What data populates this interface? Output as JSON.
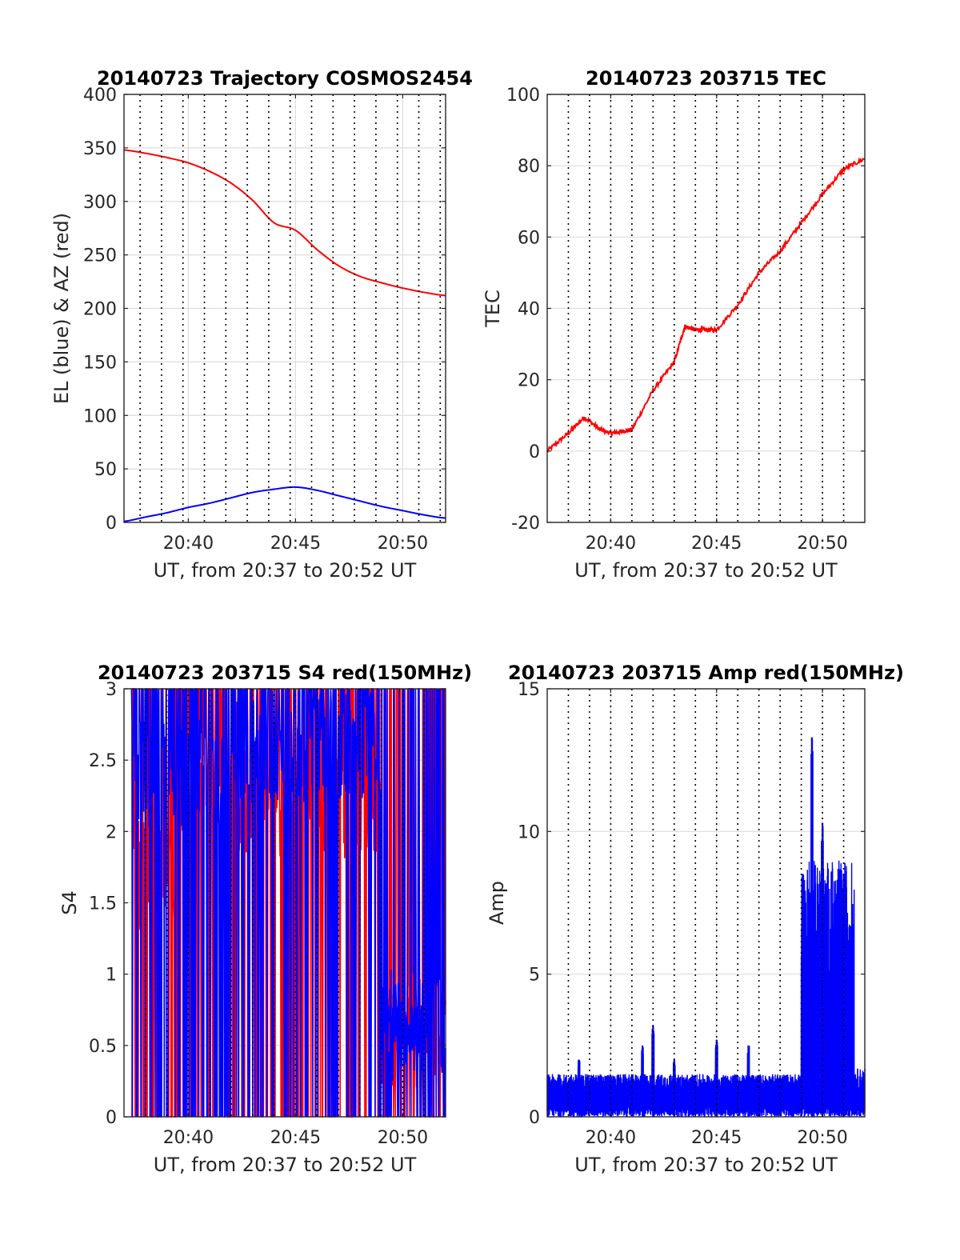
{
  "colors": {
    "red": "#ff0000",
    "blue": "#0000ff",
    "grid": "#dddddd",
    "axis": "#262626",
    "vline": "#000000"
  },
  "chart_data": [
    {
      "type": "line",
      "title": "20140723 Trajectory COSMOS2454",
      "xlabel": "UT, from 20:37 to 20:52 UT",
      "ylabel": "EL (blue) & AZ (red)",
      "xlim": [
        "20:37",
        "20:52"
      ],
      "ylim": [
        0,
        400
      ],
      "xticks": [
        "20:40",
        "20:45",
        "20:50"
      ],
      "yticks": [
        0,
        50,
        100,
        150,
        200,
        250,
        300,
        350,
        400
      ],
      "grid": true,
      "x": [
        "20:37",
        "20:38",
        "20:39",
        "20:40",
        "20:41",
        "20:42",
        "20:43",
        "20:44",
        "20:45",
        "20:46",
        "20:47",
        "20:48",
        "20:49",
        "20:50",
        "20:51",
        "20:52"
      ],
      "series": [
        {
          "color": "red",
          "values": [
            348,
            345,
            341,
            336,
            328,
            317,
            301,
            280,
            273,
            255,
            240,
            230,
            224,
            219,
            215,
            212
          ]
        },
        {
          "color": "blue",
          "values": [
            1,
            5,
            9,
            14,
            18,
            23,
            28,
            31,
            33,
            30,
            25,
            20,
            15,
            11,
            7,
            4
          ]
        }
      ],
      "vlines": [
        "20:37:45",
        "20:38:45",
        "20:39:45",
        "20:40:45",
        "20:41:45",
        "20:42:45",
        "20:43:45",
        "20:44:45",
        "20:45:45",
        "20:46:45",
        "20:47:45",
        "20:48:45",
        "20:49:45",
        "20:50:45",
        "20:51:45"
      ]
    },
    {
      "type": "line",
      "title": "20140723 203715 TEC",
      "xlabel": "UT, from 20:37 to 20:52 UT",
      "ylabel": "TEC",
      "xlim": [
        "20:37",
        "20:52"
      ],
      "ylim": [
        -20,
        100
      ],
      "xticks": [
        "20:40",
        "20:45",
        "20:50"
      ],
      "yticks": [
        -20,
        0,
        20,
        40,
        60,
        80,
        100
      ],
      "grid": true,
      "x": [
        "20:37",
        "20:38",
        "20:38:45",
        "20:39:30",
        "20:40",
        "20:40:30",
        "20:41",
        "20:42",
        "20:43",
        "20:43:30",
        "20:44",
        "20:44:30",
        "20:45",
        "20:46",
        "20:47",
        "20:48",
        "20:49",
        "20:50",
        "20:51",
        "20:52"
      ],
      "series": [
        {
          "color": "red",
          "values": [
            0,
            5,
            9.5,
            6,
            5,
            5.5,
            6,
            17,
            25,
            35,
            34,
            34,
            34,
            41,
            50,
            56,
            64,
            72,
            79,
            82
          ]
        }
      ],
      "vlines": [
        "20:38",
        "20:39",
        "20:40",
        "20:41",
        "20:42",
        "20:43",
        "20:44",
        "20:45",
        "20:46",
        "20:47",
        "20:48",
        "20:49",
        "20:50",
        "20:51"
      ]
    },
    {
      "type": "line",
      "title": "20140723 203715 S4 red(150MHz)",
      "xlabel": "UT, from 20:37 to 20:52 UT",
      "ylabel": "S4",
      "xlim": [
        "20:37",
        "20:52"
      ],
      "ylim": [
        0,
        3
      ],
      "xticks": [
        "20:40",
        "20:45",
        "20:50"
      ],
      "yticks": [
        0,
        0.5,
        1,
        1.5,
        2,
        2.5,
        3
      ],
      "grid": true,
      "series": [
        {
          "color": "red",
          "note_values_range": [
            0,
            3
          ],
          "values_envelope": "oscillates between 0 and 3 across the interval; baseline near 1.5–2 around 20:38–20:40 and near 0.6 after 20:49"
        },
        {
          "color": "blue",
          "values_envelope": "oscillates between 0 and 3; dense near 3 at 20:42–20:48; band near 0.6 around 20:49–20:50"
        }
      ],
      "vlines": [
        "20:38",
        "20:39",
        "20:40",
        "20:41",
        "20:42",
        "20:43",
        "20:44",
        "20:45",
        "20:46",
        "20:47",
        "20:48",
        "20:49",
        "20:50",
        "20:51"
      ]
    },
    {
      "type": "line",
      "title": "20140723 203715 Amp red(150MHz)",
      "xlabel": "UT, from 20:37 to 20:52 UT",
      "ylabel": "Amp",
      "xlim": [
        "20:37",
        "20:52"
      ],
      "ylim": [
        0,
        15
      ],
      "xticks": [
        "20:40",
        "20:45",
        "20:50"
      ],
      "yticks": [
        0,
        5,
        10,
        15
      ],
      "grid": true,
      "peaks": [
        {
          "t": "20:38:30",
          "v": 2.0
        },
        {
          "t": "20:41:30",
          "v": 2.5
        },
        {
          "t": "20:42",
          "v": 3.2
        },
        {
          "t": "20:43",
          "v": 2.0
        },
        {
          "t": "20:45",
          "v": 2.7
        },
        {
          "t": "20:46:30",
          "v": 2.5
        },
        {
          "t": "20:49:30",
          "v": 13.3
        },
        {
          "t": "20:50",
          "v": 10.3
        },
        {
          "t": "20:51",
          "v": 8.5
        }
      ],
      "series": [
        {
          "color": "blue",
          "values_envelope": "baseline about 0.5–1.5 until 20:49, then 4–10 with spike to 13.3 at 20:49:30, dropping near 20:51:30"
        }
      ],
      "vlines": [
        "20:38",
        "20:39",
        "20:40",
        "20:41",
        "20:42",
        "20:43",
        "20:44",
        "20:45",
        "20:46",
        "20:47",
        "20:48",
        "20:49",
        "20:50",
        "20:51"
      ]
    }
  ]
}
